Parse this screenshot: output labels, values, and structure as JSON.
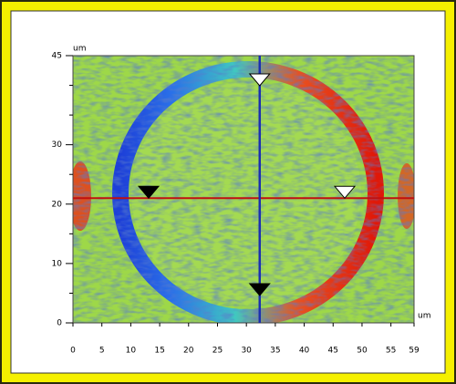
{
  "chart_data": {
    "type": "image",
    "x_unit": "um",
    "y_unit": "um",
    "xlim": [
      0,
      59
    ],
    "ylim": [
      0,
      45
    ],
    "xticks": [
      0,
      5,
      10,
      15,
      20,
      25,
      30,
      35,
      40,
      45,
      50,
      55,
      59
    ],
    "yticks": [
      0,
      10,
      20,
      30,
      45
    ],
    "yminor": [
      5,
      15,
      25,
      35,
      40
    ],
    "cursor": {
      "x": 32.3,
      "y": 21,
      "x_color": "#1a2fb0",
      "y_color": "#c01010"
    }
  }
}
